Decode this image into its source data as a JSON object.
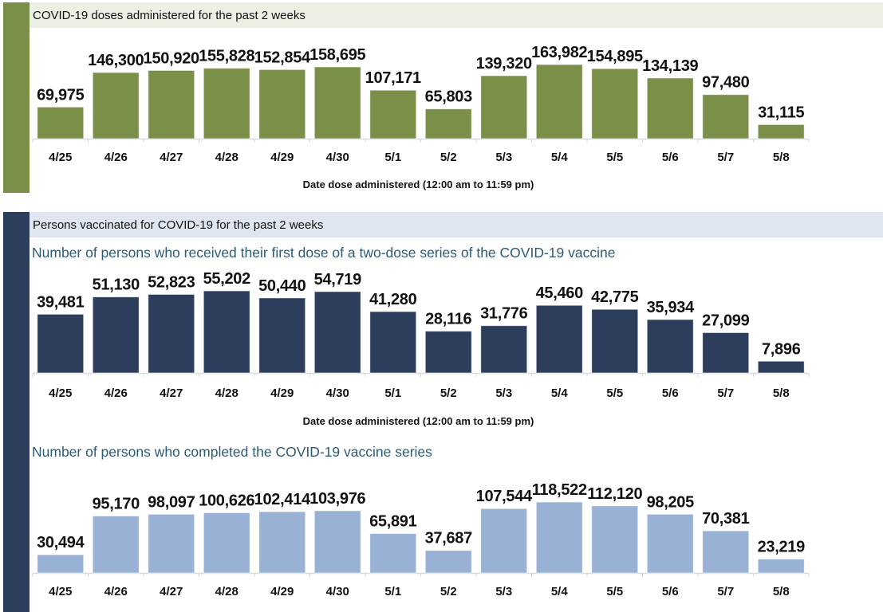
{
  "sections": [
    {
      "header": "COVID-19 doses administered for the past 2 weeks",
      "strip_color": "#7a8f48"
    },
    {
      "header": "Persons vaccinated for COVID-19 for the past 2 weeks",
      "strip_color": "#2c3e5c"
    }
  ],
  "chart_data": [
    {
      "type": "bar",
      "title": "COVID-19 doses administered for the past 2 weeks",
      "xlabel": "Date dose administered (12:00 am to 11:59 pm)",
      "ylabel": "",
      "categories": [
        "4/25",
        "4/26",
        "4/27",
        "4/28",
        "4/29",
        "4/30",
        "5/1",
        "5/2",
        "5/3",
        "5/4",
        "5/5",
        "5/6",
        "5/7",
        "5/8"
      ],
      "values": [
        69975,
        146300,
        150920,
        155828,
        152854,
        158695,
        107171,
        65803,
        139320,
        163982,
        154895,
        134139,
        97480,
        31115
      ],
      "value_labels": [
        "69,975",
        "146,300",
        "150,920",
        "155,828",
        "152,854",
        "158,695",
        "107,171",
        "65,803",
        "139,320",
        "163,982",
        "154,895",
        "134,139",
        "97,480",
        "31,115"
      ],
      "ylim": [
        0,
        163982
      ],
      "grid": false,
      "bar_color": "#7a8f48"
    },
    {
      "type": "bar",
      "title": "Number of persons who received their first dose of a two-dose series of the COVID-19 vaccine",
      "xlabel": "Date dose administered (12:00 am to 11:59 pm)",
      "ylabel": "",
      "categories": [
        "4/25",
        "4/26",
        "4/27",
        "4/28",
        "4/29",
        "4/30",
        "5/1",
        "5/2",
        "5/3",
        "5/4",
        "5/5",
        "5/6",
        "5/7",
        "5/8"
      ],
      "values": [
        39481,
        51130,
        52823,
        55202,
        50440,
        54719,
        41280,
        28116,
        31776,
        45460,
        42775,
        35934,
        27099,
        7896
      ],
      "value_labels": [
        "39,481",
        "51,130",
        "52,823",
        "55,202",
        "50,440",
        "54,719",
        "41,280",
        "28,116",
        "31,776",
        "45,460",
        "42,775",
        "35,934",
        "27,099",
        "7,896"
      ],
      "ylim": [
        0,
        55202
      ],
      "grid": false,
      "bar_color": "#2c3e5c"
    },
    {
      "type": "bar",
      "title": "Number of persons who completed the COVID-19 vaccine series",
      "xlabel": "",
      "ylabel": "",
      "categories": [
        "4/25",
        "4/26",
        "4/27",
        "4/28",
        "4/29",
        "4/30",
        "5/1",
        "5/2",
        "5/3",
        "5/4",
        "5/5",
        "5/6",
        "5/7",
        "5/8"
      ],
      "values": [
        30494,
        95170,
        98097,
        100626,
        102414,
        103976,
        65891,
        37687,
        107544,
        118522,
        112120,
        98205,
        70381,
        23219
      ],
      "value_labels": [
        "30,494",
        "95,170",
        "98,097",
        "100,626",
        "102,414",
        "103,976",
        "65,891",
        "37,687",
        "107,544",
        "118,522",
        "112,120",
        "98,205",
        "70,381",
        "23,219"
      ],
      "ylim": [
        0,
        118522
      ],
      "grid": false,
      "bar_color": "#98b1d4"
    }
  ]
}
